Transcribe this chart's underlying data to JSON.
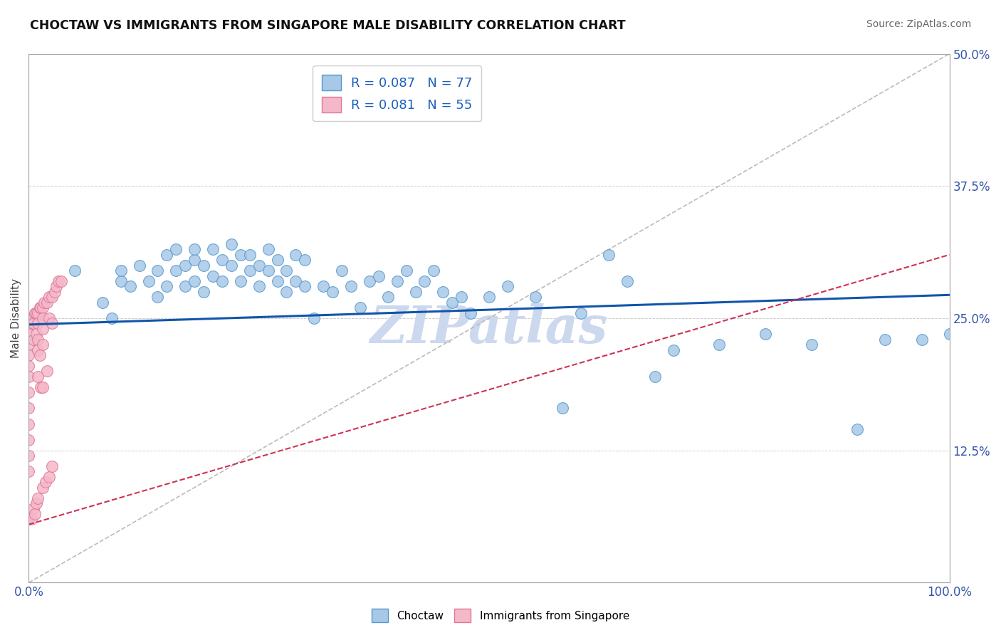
{
  "title": "CHOCTAW VS IMMIGRANTS FROM SINGAPORE MALE DISABILITY CORRELATION CHART",
  "source": "Source: ZipAtlas.com",
  "ylabel": "Male Disability",
  "xlim": [
    0.0,
    1.0
  ],
  "ylim": [
    0.0,
    0.5
  ],
  "xticks": [
    0.0,
    0.125,
    0.25,
    0.375,
    0.5,
    0.625,
    0.75,
    0.875,
    1.0
  ],
  "xticklabels": [
    "0.0%",
    "",
    "",
    "",
    "",
    "",
    "",
    "",
    "100.0%"
  ],
  "yticks": [
    0.0,
    0.125,
    0.25,
    0.375,
    0.5
  ],
  "yticklabels": [
    "",
    "12.5%",
    "25.0%",
    "37.5%",
    "50.0%"
  ],
  "choctaw_color": "#a8c8e8",
  "choctaw_edge": "#5599cc",
  "singapore_color": "#f5b8c8",
  "singapore_edge": "#dd7799",
  "trendline_choctaw_color": "#1155aa",
  "trendline_singapore_color": "#cc3355",
  "watermark_color": "#ccd8ee",
  "R_choctaw": 0.087,
  "N_choctaw": 77,
  "R_singapore": 0.081,
  "N_singapore": 55,
  "choctaw_x": [
    0.05,
    0.08,
    0.09,
    0.1,
    0.1,
    0.11,
    0.12,
    0.13,
    0.14,
    0.14,
    0.15,
    0.15,
    0.16,
    0.16,
    0.17,
    0.17,
    0.18,
    0.18,
    0.18,
    0.19,
    0.19,
    0.2,
    0.2,
    0.21,
    0.21,
    0.22,
    0.22,
    0.23,
    0.23,
    0.24,
    0.24,
    0.25,
    0.25,
    0.26,
    0.26,
    0.27,
    0.27,
    0.28,
    0.28,
    0.29,
    0.29,
    0.3,
    0.3,
    0.31,
    0.32,
    0.33,
    0.34,
    0.35,
    0.36,
    0.37,
    0.38,
    0.39,
    0.4,
    0.41,
    0.42,
    0.43,
    0.44,
    0.45,
    0.46,
    0.47,
    0.48,
    0.5,
    0.52,
    0.55,
    0.58,
    0.6,
    0.63,
    0.65,
    0.68,
    0.7,
    0.75,
    0.8,
    0.85,
    0.9,
    0.93,
    0.97,
    1.0
  ],
  "choctaw_y": [
    0.295,
    0.265,
    0.25,
    0.285,
    0.295,
    0.28,
    0.3,
    0.285,
    0.27,
    0.295,
    0.31,
    0.28,
    0.295,
    0.315,
    0.28,
    0.3,
    0.285,
    0.305,
    0.315,
    0.275,
    0.3,
    0.315,
    0.29,
    0.305,
    0.285,
    0.32,
    0.3,
    0.31,
    0.285,
    0.31,
    0.295,
    0.28,
    0.3,
    0.315,
    0.295,
    0.285,
    0.305,
    0.275,
    0.295,
    0.31,
    0.285,
    0.28,
    0.305,
    0.25,
    0.28,
    0.275,
    0.295,
    0.28,
    0.26,
    0.285,
    0.29,
    0.27,
    0.285,
    0.295,
    0.275,
    0.285,
    0.295,
    0.275,
    0.265,
    0.27,
    0.255,
    0.27,
    0.28,
    0.27,
    0.165,
    0.255,
    0.31,
    0.285,
    0.195,
    0.22,
    0.225,
    0.235,
    0.225,
    0.145,
    0.23,
    0.23,
    0.235
  ],
  "singapore_x": [
    0.0,
    0.0,
    0.0,
    0.0,
    0.0,
    0.0,
    0.0,
    0.0,
    0.0,
    0.0,
    0.0,
    0.0,
    0.0,
    0.0,
    0.003,
    0.003,
    0.005,
    0.005,
    0.005,
    0.005,
    0.007,
    0.007,
    0.008,
    0.008,
    0.008,
    0.01,
    0.01,
    0.01,
    0.01,
    0.01,
    0.01,
    0.012,
    0.012,
    0.013,
    0.013,
    0.015,
    0.015,
    0.015,
    0.015,
    0.015,
    0.015,
    0.017,
    0.018,
    0.02,
    0.02,
    0.022,
    0.022,
    0.022,
    0.025,
    0.025,
    0.025,
    0.028,
    0.03,
    0.032,
    0.035
  ],
  "singapore_y": [
    0.25,
    0.245,
    0.235,
    0.225,
    0.215,
    0.205,
    0.195,
    0.18,
    0.165,
    0.15,
    0.135,
    0.12,
    0.105,
    0.06,
    0.245,
    0.06,
    0.25,
    0.245,
    0.23,
    0.07,
    0.255,
    0.065,
    0.255,
    0.235,
    0.075,
    0.255,
    0.245,
    0.23,
    0.22,
    0.195,
    0.08,
    0.26,
    0.215,
    0.26,
    0.185,
    0.26,
    0.25,
    0.24,
    0.225,
    0.185,
    0.09,
    0.265,
    0.095,
    0.265,
    0.2,
    0.27,
    0.25,
    0.1,
    0.27,
    0.245,
    0.11,
    0.275,
    0.28,
    0.285,
    0.285
  ]
}
